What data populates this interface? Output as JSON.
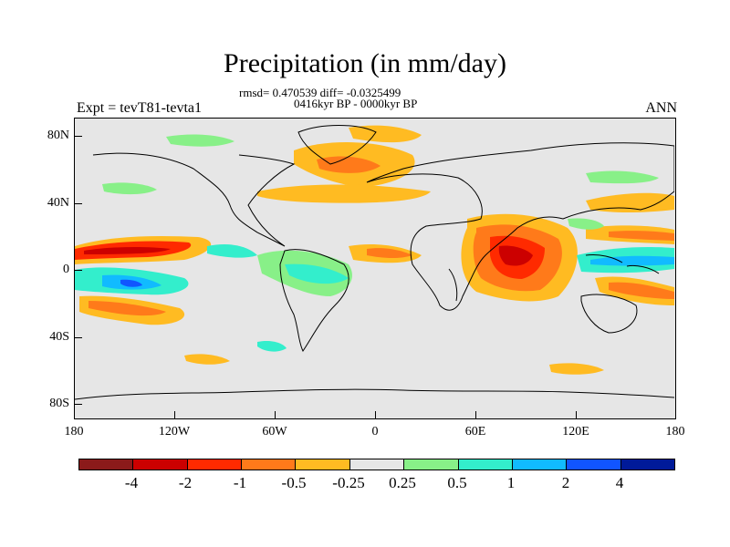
{
  "title": "Precipitation (in mm/day)",
  "stats_line": "rmsd= 0.470539 diff= -0.0325499",
  "period_line": "0416kyr BP - 0000kyr BP",
  "experiment_label": "Expt = tevT81-tevta1",
  "season_label": "ANN",
  "lat_labels": [
    "80N",
    "40N",
    "0",
    "40S",
    "80S"
  ],
  "lon_labels": [
    "180",
    "120W",
    "60W",
    "0",
    "60E",
    "120E",
    "180"
  ],
  "colorbar": {
    "colors": [
      "#8b1a1a",
      "#cc0000",
      "#ff2a00",
      "#ff7a1a",
      "#ffbb22",
      "#e6e6e6",
      "#88f088",
      "#33eecc",
      "#11bbff",
      "#1155ff",
      "#001a99"
    ],
    "labels": [
      "-4",
      "-2",
      "-1",
      "-0.5",
      "-0.25",
      "0.25",
      "0.5",
      "1",
      "2",
      "4"
    ]
  }
}
